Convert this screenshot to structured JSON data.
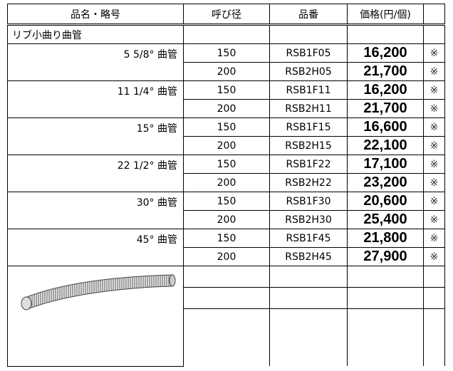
{
  "header": [
    "品名・略号",
    "呼び径",
    "品番",
    "価格(円/個)",
    ""
  ],
  "section": "リブ小曲り曲管",
  "groups": [
    {
      "label": "5 5/8°  曲管",
      "rows": [
        {
          "size": "150",
          "code": "RSB1F05",
          "price": "16,200",
          "note": "※"
        },
        {
          "size": "200",
          "code": "RSB2H05",
          "price": "21,700",
          "note": "※"
        }
      ]
    },
    {
      "label": "11 1/4°  曲管",
      "rows": [
        {
          "size": "150",
          "code": "RSB1F11",
          "price": "16,200",
          "note": "※"
        },
        {
          "size": "200",
          "code": "RSB2H11",
          "price": "21,700",
          "note": "※"
        }
      ]
    },
    {
      "label": "15°  曲管",
      "rows": [
        {
          "size": "150",
          "code": "RSB1F15",
          "price": "16,600",
          "note": "※"
        },
        {
          "size": "200",
          "code": "RSB2H15",
          "price": "22,100",
          "note": "※"
        }
      ]
    },
    {
      "label": "22 1/2°  曲管",
      "rows": [
        {
          "size": "150",
          "code": "RSB1F22",
          "price": "17,100",
          "note": "※"
        },
        {
          "size": "200",
          "code": "RSB2H22",
          "price": "23,200",
          "note": "※"
        }
      ]
    },
    {
      "label": "30°  曲管",
      "rows": [
        {
          "size": "150",
          "code": "RSB1F30",
          "price": "20,600",
          "note": "※"
        },
        {
          "size": "200",
          "code": "RSB2H30",
          "price": "25,400",
          "note": "※"
        }
      ]
    },
    {
      "label": "45°  曲管",
      "rows": [
        {
          "size": "150",
          "code": "RSB1F45",
          "price": "21,800",
          "note": "※"
        },
        {
          "size": "200",
          "code": "RSB2H45",
          "price": "27,900",
          "note": "※"
        }
      ]
    }
  ]
}
